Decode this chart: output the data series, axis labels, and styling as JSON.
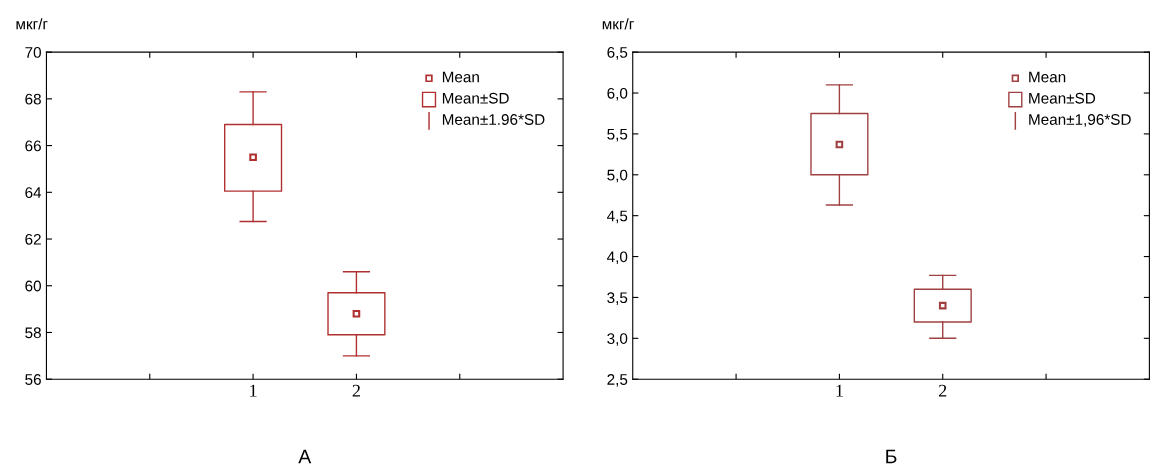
{
  "chart_data": [
    {
      "type": "box",
      "xlabel": "А",
      "ylabel": "мкг/г",
      "color": "#b03030",
      "categories": [
        null,
        "1",
        "2",
        null
      ],
      "boxes": [
        null,
        {
          "low": 62.75,
          "q1": 64.05,
          "median": 65.5,
          "q3": 66.9,
          "high": 68.3
        },
        {
          "low": 57.0,
          "q1": 57.9,
          "median": 58.8,
          "q3": 59.7,
          "high": 60.6
        },
        null
      ],
      "ylim": [
        56,
        70
      ],
      "yticks": [
        56,
        58,
        60,
        62,
        64,
        66,
        68,
        70
      ],
      "grid": false,
      "annotations": [
        "Mean",
        "Mean±SD",
        "Mean±1.96*SD"
      ]
    },
    {
      "type": "box",
      "xlabel": "Б",
      "ylabel": "мкг/г",
      "color": "#a04040",
      "categories": [
        null,
        "1",
        "2",
        null
      ],
      "boxes": [
        null,
        {
          "low": 4.63,
          "q1": 5.0,
          "median": 5.37,
          "q3": 5.75,
          "high": 6.1
        },
        {
          "low": 3.0,
          "q1": 3.2,
          "median": 3.4,
          "q3": 3.6,
          "high": 3.77
        },
        null
      ],
      "ylim": [
        2.5,
        6.5
      ],
      "yticks": [
        {
          "value": 2.5,
          "label": "2,5"
        },
        {
          "value": 3.0,
          "label": "3,0"
        },
        {
          "value": 3.5,
          "label": "3,5"
        },
        {
          "value": 4.0,
          "label": "4,0"
        },
        {
          "value": 4.5,
          "label": "4,5"
        },
        {
          "value": 5.0,
          "label": "5,0"
        },
        {
          "value": 5.5,
          "label": "5,5"
        },
        {
          "value": 6.0,
          "label": "6,0"
        },
        {
          "value": 6.5,
          "label": "6,5"
        }
      ],
      "grid": false,
      "annotations": [
        "Mean",
        "Mean±SD",
        "Mean±1,96*SD"
      ]
    }
  ]
}
